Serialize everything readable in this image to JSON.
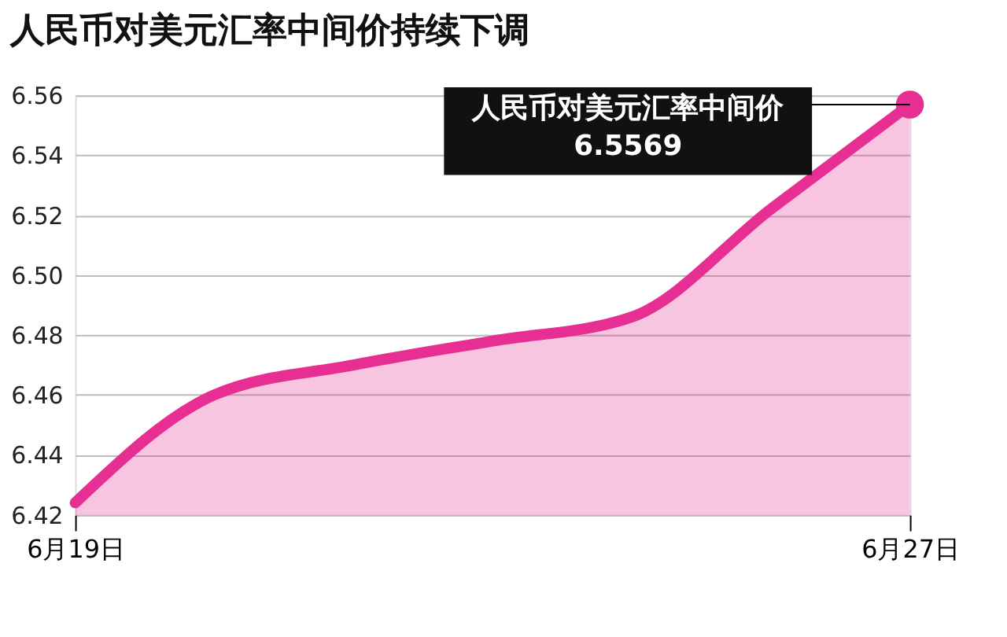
{
  "chart_data": {
    "type": "area",
    "title": "人民币对美元汇率中间价持续下调",
    "categories": [
      "6月19日",
      null,
      null,
      null,
      null,
      null,
      "6月27日"
    ],
    "series": [
      {
        "color": "#e62e93",
        "values": [
          6.424,
          6.46,
          6.47,
          6.478,
          6.486,
          6.522,
          6.5569
        ]
      }
    ],
    "ylim": [
      6.42,
      6.56
    ],
    "yticks": [
      6.42,
      6.44,
      6.46,
      6.48,
      {
        "value": 6.5,
        "label": "6.50"
      },
      6.52,
      6.54,
      6.56
    ],
    "grid": "y",
    "marker": "none",
    "line_style": "solid",
    "annotations": [
      {
        "text": "人民币对美元汇率中间价\n6.5569",
        "x": "6月27日",
        "y": 6.5569
      }
    ]
  }
}
